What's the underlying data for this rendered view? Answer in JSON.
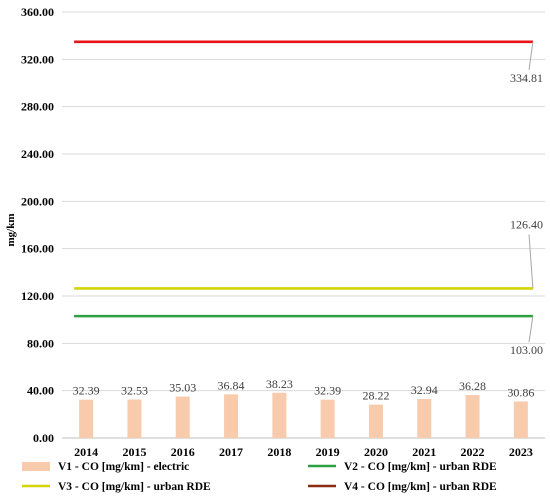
{
  "chart_data": {
    "type": "bar",
    "xlabel": "",
    "ylabel": "mg/km",
    "ylim": [
      0,
      360
    ],
    "yticks": [
      "0.00",
      "40.00",
      "80.00",
      "120.00",
      "160.00",
      "200.00",
      "240.00",
      "280.00",
      "320.00",
      "360.00"
    ],
    "categories": [
      "2014",
      "2015",
      "2016",
      "2017",
      "2018",
      "2019",
      "2020",
      "2021",
      "2022",
      "2023"
    ],
    "grid": true,
    "legend_position": "bottom",
    "series": [
      {
        "name": "V1 - CO [mg/km] - electric",
        "type": "bar",
        "color": "#f8cbad",
        "values": [
          32.39,
          32.53,
          35.03,
          36.84,
          38.23,
          32.39,
          28.22,
          32.94,
          36.28,
          30.86
        ],
        "labels": [
          "32.39",
          "32.53",
          "35.03",
          "36.84",
          "38.23",
          "32.39",
          "28.22",
          "32.94",
          "36.28",
          "30.86"
        ]
      },
      {
        "name": "V2 -  CO [mg/km] - urban RDE",
        "type": "line",
        "color": "#2ea043",
        "values": [
          103.0,
          103.0,
          103.0,
          103.0,
          103.0,
          103.0,
          103.0,
          103.0,
          103.0,
          103.0
        ],
        "end_label": "103.00"
      },
      {
        "name": "V3 -  CO [mg/km] - urban RDE",
        "type": "line",
        "color": "#d4d40a",
        "values": [
          126.4,
          126.4,
          126.4,
          126.4,
          126.4,
          126.4,
          126.4,
          126.4,
          126.4,
          126.4
        ],
        "end_label": "126.40"
      },
      {
        "name": "V4 -  CO [mg/km] - urban RDE",
        "type": "line",
        "color": "#8b2a0e",
        "values": [
          334.81,
          334.81,
          334.81,
          334.81,
          334.81,
          334.81,
          334.81,
          334.81,
          334.81,
          334.81
        ],
        "draw_color": "#e8141a",
        "end_label": "334.81"
      }
    ]
  }
}
